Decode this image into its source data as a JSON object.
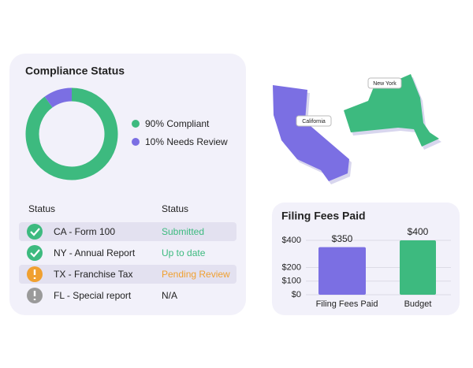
{
  "chart_data": [
    {
      "type": "donut",
      "title": "Compliance Status",
      "categories": [
        "90% Compliant",
        "10% Needs Review"
      ],
      "values": [
        90,
        10
      ],
      "colors": [
        "#3dba7f",
        "#7b6fe3"
      ]
    },
    {
      "type": "bar",
      "title": "Filing Fees Paid",
      "categories": [
        "Filing Fees Paid",
        "Budget"
      ],
      "values": [
        350,
        400
      ],
      "value_labels": [
        "$350",
        "$400"
      ],
      "colors": [
        "#7b6fe3",
        "#3dba7f"
      ],
      "ylim": [
        0,
        400
      ],
      "yticks": [
        {
          "value": 0,
          "label": "$0"
        },
        {
          "value": 100,
          "label": "$100"
        },
        {
          "value": 200,
          "label": "$200"
        },
        {
          "value": 400,
          "label": "$400"
        }
      ],
      "grid": true
    }
  ],
  "table": {
    "header": [
      "Status",
      "Status"
    ],
    "rows": [
      [
        "CA - Form 100",
        "Submitted"
      ],
      [
        "NY - Annual Report",
        "Up to date"
      ],
      [
        "TX - Franchise Tax",
        "Pending Review"
      ],
      [
        "FL - Special report",
        "N/A"
      ]
    ]
  },
  "map": {
    "labels": [
      "California",
      "New York"
    ]
  }
}
